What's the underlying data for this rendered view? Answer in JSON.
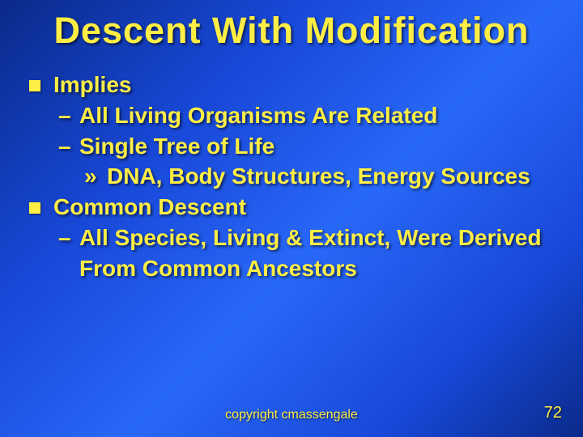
{
  "colors": {
    "text": "#ffee44",
    "bg_gradient_start": "#0a2a8a",
    "bg_gradient_mid": "#2868f8",
    "bg_gradient_end": "#0a2a8a",
    "bullet_square": "#ffee44"
  },
  "typography": {
    "font_family": "Comic Sans MS",
    "title_fontsize_pt": 34,
    "body_fontsize_pt": 21,
    "footer_fontsize_pt": 12,
    "body_weight": "bold"
  },
  "slide": {
    "title": "Descent With Modification",
    "bullets": [
      {
        "label": "Implies",
        "sub": [
          {
            "label": "All Living Organisms Are Related"
          },
          {
            "label": "Single Tree of Life",
            "sub": [
              {
                "label": "DNA, Body Structures, Energy Sources"
              }
            ]
          }
        ]
      },
      {
        "label": "Common Descent",
        "sub": [
          {
            "label": "All Species, Living & Extinct, Were Derived From Common Ancestors"
          }
        ]
      }
    ],
    "footer": {
      "copyright": "copyright cmassengale",
      "page_number": "72"
    }
  }
}
